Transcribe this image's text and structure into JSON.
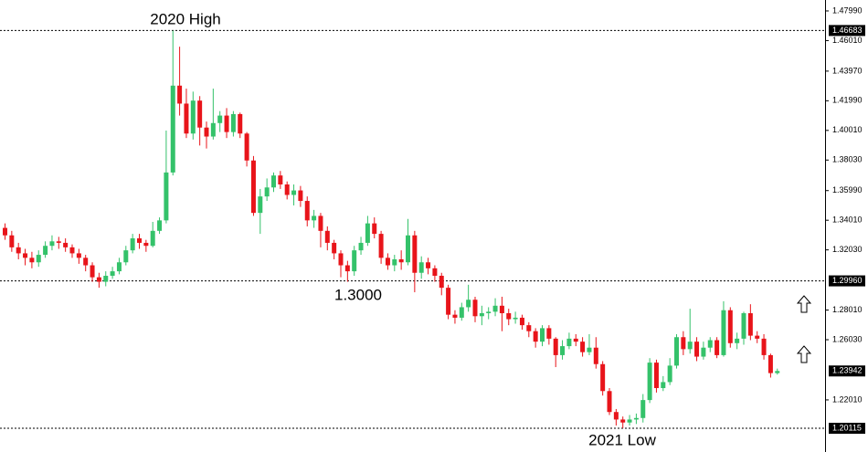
{
  "chart_data": {
    "type": "candlestick",
    "annotations": [
      "2020 High",
      "1.3000",
      "2021 Low"
    ],
    "up_color": "#34c26a",
    "down_color": "#e8141a",
    "ylim": [
      1.1853,
      1.4872
    ],
    "yticks": [
      {
        "value": 1.4799,
        "label": "1.47990"
      },
      {
        "value": 1.4601,
        "label": "1.46010"
      },
      {
        "value": 1.4397,
        "label": "1.43970"
      },
      {
        "value": 1.4199,
        "label": "1.41990"
      },
      {
        "value": 1.4001,
        "label": "1.40010"
      },
      {
        "value": 1.3803,
        "label": "1.38030"
      },
      {
        "value": 1.3599,
        "label": "1.35990"
      },
      {
        "value": 1.3401,
        "label": "1.34010"
      },
      {
        "value": 1.3203,
        "label": "1.32030"
      },
      {
        "value": 1.2801,
        "label": "1.28010"
      },
      {
        "value": 1.2603,
        "label": "1.26030"
      },
      {
        "value": 1.2201,
        "label": "1.22010"
      }
    ],
    "levels": [
      {
        "value": 1.46683,
        "label": "1.46683"
      },
      {
        "value": 1.2996,
        "label": "1.29960"
      },
      {
        "value": 1.23942,
        "label": "1.23942"
      },
      {
        "value": 1.20115,
        "label": "1.20115"
      }
    ],
    "open": [
      1.335,
      1.33,
      1.322,
      1.318,
      1.315,
      1.312,
      1.317,
      1.323,
      1.326,
      1.325,
      1.322,
      1.318,
      1.315,
      1.31,
      1.302,
      1.299,
      1.303,
      1.306,
      1.312,
      1.32,
      1.328,
      1.325,
      1.323,
      1.333,
      1.34,
      1.372,
      1.43,
      1.418,
      1.398,
      1.42,
      1.402,
      1.396,
      1.405,
      1.41,
      1.399,
      1.411,
      1.398,
      1.38,
      1.345,
      1.356,
      1.362,
      1.37,
      1.364,
      1.357,
      1.36,
      1.353,
      1.34,
      1.343,
      1.333,
      1.325,
      1.318,
      1.31,
      1.306,
      1.32,
      1.325,
      1.338,
      1.331,
      1.315,
      1.31,
      1.314,
      1.312,
      1.33,
      1.305,
      1.312,
      1.308,
      1.303,
      1.295,
      1.277,
      1.275,
      1.282,
      1.287,
      1.276,
      1.278,
      1.279,
      1.283,
      1.278,
      1.274,
      1.275,
      1.27,
      1.266,
      1.259,
      1.268,
      1.261,
      1.25,
      1.256,
      1.261,
      1.259,
      1.252,
      1.255,
      1.244,
      1.226,
      1.212,
      1.207,
      1.205,
      1.207,
      1.208,
      1.22,
      1.245,
      1.228,
      1.232,
      1.243,
      1.262,
      1.254,
      1.259,
      1.249,
      1.255,
      1.26,
      1.25,
      1.28,
      1.258,
      1.261,
      1.278,
      1.263,
      1.261,
      1.25,
      1.238
    ],
    "high": [
      1.338,
      1.333,
      1.325,
      1.321,
      1.319,
      1.32,
      1.326,
      1.33,
      1.329,
      1.328,
      1.324,
      1.321,
      1.317,
      1.312,
      1.305,
      1.306,
      1.309,
      1.315,
      1.323,
      1.331,
      1.331,
      1.327,
      1.339,
      1.342,
      1.4,
      1.4668,
      1.456,
      1.428,
      1.426,
      1.423,
      1.406,
      1.428,
      1.413,
      1.415,
      1.413,
      1.412,
      1.399,
      1.383,
      1.361,
      1.368,
      1.372,
      1.373,
      1.366,
      1.364,
      1.363,
      1.356,
      1.347,
      1.345,
      1.336,
      1.327,
      1.32,
      1.313,
      1.323,
      1.329,
      1.343,
      1.342,
      1.333,
      1.318,
      1.317,
      1.32,
      1.341,
      1.333,
      1.316,
      1.315,
      1.31,
      1.305,
      1.297,
      1.28,
      1.285,
      1.297,
      1.289,
      1.283,
      1.282,
      1.288,
      1.289,
      1.281,
      1.279,
      1.277,
      1.272,
      1.268,
      1.27,
      1.27,
      1.262,
      1.26,
      1.265,
      1.264,
      1.262,
      1.264,
      1.262,
      1.246,
      1.228,
      1.214,
      1.209,
      1.21,
      1.211,
      1.224,
      1.248,
      1.247,
      1.236,
      1.248,
      1.264,
      1.266,
      1.281,
      1.262,
      1.259,
      1.262,
      1.262,
      1.286,
      1.282,
      1.265,
      1.279,
      1.284,
      1.266,
      1.264,
      1.251,
      1.241
    ],
    "low": [
      1.327,
      1.319,
      1.314,
      1.31,
      1.308,
      1.309,
      1.315,
      1.32,
      1.321,
      1.319,
      1.315,
      1.311,
      1.306,
      1.299,
      1.295,
      1.296,
      1.301,
      1.304,
      1.31,
      1.318,
      1.321,
      1.319,
      1.322,
      1.331,
      1.338,
      1.37,
      1.41,
      1.395,
      1.394,
      1.39,
      1.388,
      1.394,
      1.399,
      1.395,
      1.396,
      1.395,
      1.376,
      1.343,
      1.331,
      1.353,
      1.359,
      1.361,
      1.354,
      1.35,
      1.349,
      1.336,
      1.335,
      1.322,
      1.32,
      1.314,
      1.302,
      1.299,
      1.303,
      1.317,
      1.323,
      1.328,
      1.311,
      1.307,
      1.306,
      1.307,
      1.31,
      1.292,
      1.301,
      1.304,
      1.299,
      1.29,
      1.274,
      1.271,
      1.273,
      1.279,
      1.272,
      1.27,
      1.274,
      1.276,
      1.266,
      1.27,
      1.271,
      1.267,
      1.262,
      1.255,
      1.256,
      1.257,
      1.242,
      1.247,
      1.254,
      1.256,
      1.249,
      1.25,
      1.241,
      1.223,
      1.21,
      1.203,
      1.2012,
      1.203,
      1.204,
      1.205,
      1.218,
      1.225,
      1.226,
      1.23,
      1.241,
      1.25,
      1.251,
      1.246,
      1.247,
      1.252,
      1.248,
      1.249,
      1.255,
      1.254,
      1.257,
      1.26,
      1.258,
      1.247,
      1.235,
      1.237
    ],
    "close": [
      1.33,
      1.322,
      1.318,
      1.315,
      1.312,
      1.317,
      1.323,
      1.326,
      1.325,
      1.322,
      1.318,
      1.315,
      1.31,
      1.302,
      1.299,
      1.303,
      1.306,
      1.312,
      1.32,
      1.328,
      1.325,
      1.323,
      1.333,
      1.34,
      1.372,
      1.43,
      1.418,
      1.398,
      1.42,
      1.402,
      1.396,
      1.405,
      1.41,
      1.399,
      1.411,
      1.398,
      1.38,
      1.345,
      1.356,
      1.362,
      1.37,
      1.364,
      1.357,
      1.36,
      1.353,
      1.34,
      1.343,
      1.333,
      1.325,
      1.318,
      1.31,
      1.306,
      1.32,
      1.325,
      1.338,
      1.331,
      1.315,
      1.31,
      1.314,
      1.312,
      1.33,
      1.305,
      1.312,
      1.308,
      1.303,
      1.295,
      1.277,
      1.275,
      1.282,
      1.287,
      1.276,
      1.278,
      1.279,
      1.283,
      1.278,
      1.274,
      1.275,
      1.27,
      1.266,
      1.259,
      1.268,
      1.261,
      1.25,
      1.256,
      1.261,
      1.259,
      1.252,
      1.255,
      1.244,
      1.226,
      1.212,
      1.207,
      1.205,
      1.207,
      1.208,
      1.22,
      1.245,
      1.228,
      1.232,
      1.243,
      1.262,
      1.254,
      1.259,
      1.249,
      1.255,
      1.26,
      1.25,
      1.28,
      1.258,
      1.261,
      1.278,
      1.263,
      1.261,
      1.25,
      1.238,
      1.2394
    ]
  }
}
